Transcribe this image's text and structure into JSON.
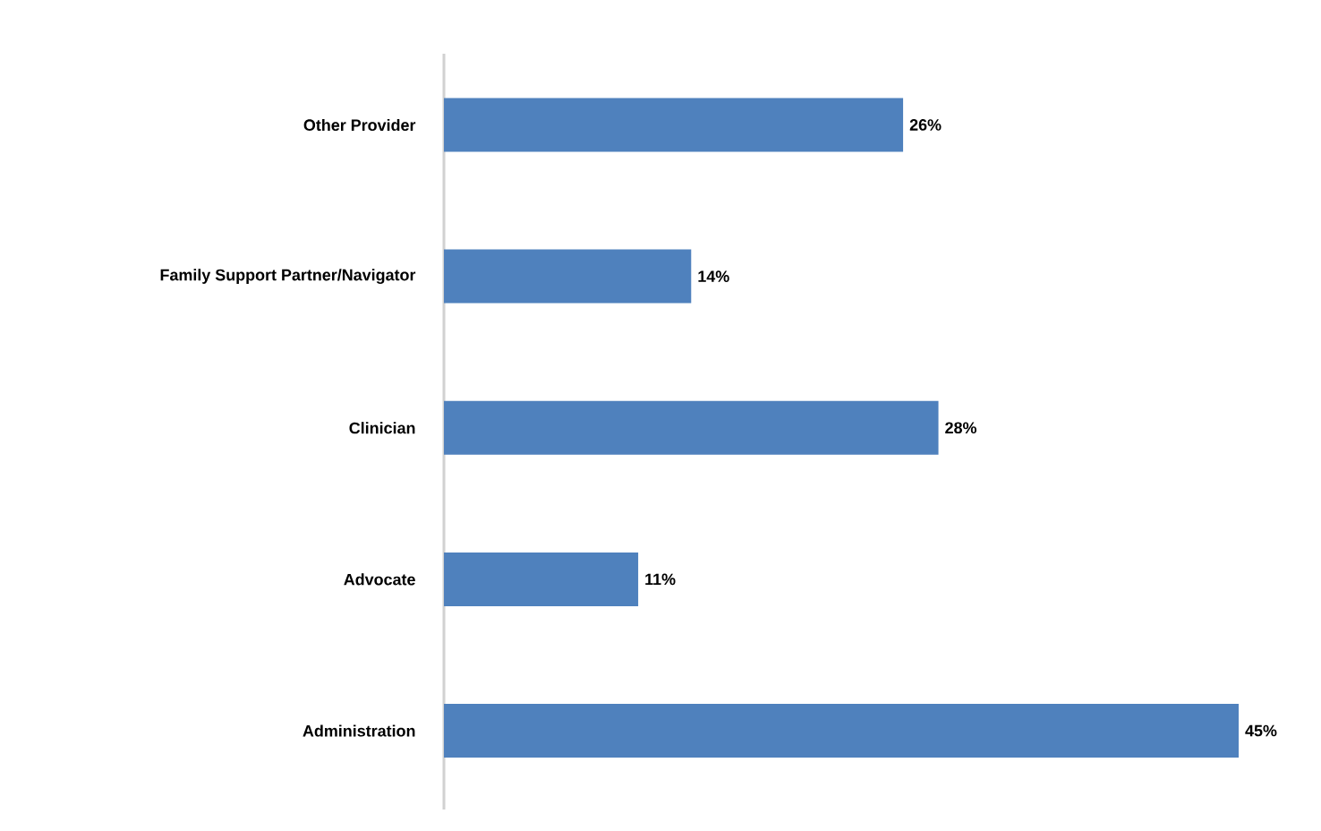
{
  "chart_data": {
    "type": "bar",
    "orientation": "horizontal",
    "categories": [
      "Other Provider",
      "Family Support Partner/Navigator",
      "Clinician",
      "Advocate",
      "Administration"
    ],
    "values": [
      26,
      14,
      28,
      11,
      45
    ],
    "value_labels": [
      "26%",
      "14%",
      "28%",
      "11%",
      "45%"
    ],
    "color": "#4f81bd",
    "tick_labels": "y"
  }
}
